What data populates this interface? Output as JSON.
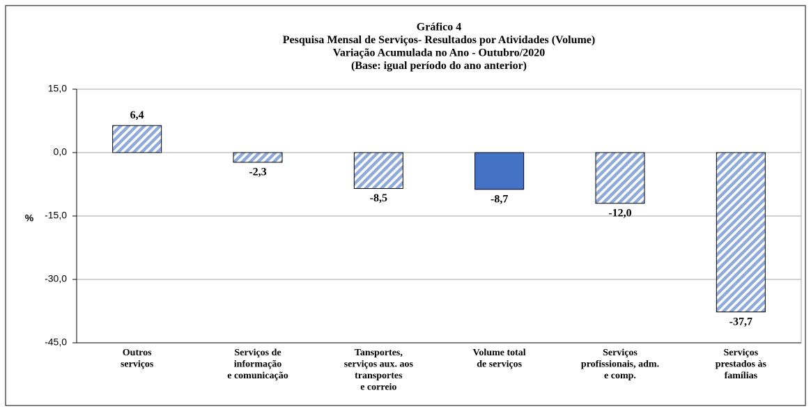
{
  "chart_data": {
    "type": "bar",
    "title": [
      "Gráfico 4",
      "Pesquisa Mensal de Serviços- Resultados por Atividades (Volume)",
      "Variação Acumulada no Ano - Outubro/2020",
      "(Base: igual período  do ano anterior)"
    ],
    "y_label": "%",
    "categories": [
      [
        "Outros",
        "serviços"
      ],
      [
        "Serviços de",
        "informação",
        "e comunicação"
      ],
      [
        "Tansportes,",
        "serviços aux. aos",
        "transportes",
        "e correio"
      ],
      [
        "Volume total",
        "de serviços"
      ],
      [
        "Serviços",
        "profissionais, adm.",
        "e comp."
      ],
      [
        "Serviços",
        "prestados às",
        "famílias"
      ]
    ],
    "values": [
      6.4,
      -2.3,
      -8.5,
      -8.7,
      -12.0,
      -37.7
    ],
    "value_labels": [
      "6,4",
      "-2,3",
      "-8,5",
      "-8,7",
      "-12,0",
      "-37,7"
    ],
    "colors": [
      "#8eaadb",
      "#8eaadb",
      "#8eaadb",
      "#4472c4",
      "#8eaadb",
      "#8eaadb"
    ],
    "hatched": [
      true,
      true,
      true,
      false,
      true,
      true
    ],
    "ylim": [
      -45,
      15
    ],
    "yticks": [
      {
        "value": 15,
        "label": "15,0"
      },
      {
        "value": 0,
        "label": "0,0"
      },
      {
        "value": -15,
        "label": "-15,0"
      },
      {
        "value": -30,
        "label": "-30,0"
      },
      {
        "value": -45,
        "label": "-45,0"
      }
    ],
    "grid": true
  }
}
